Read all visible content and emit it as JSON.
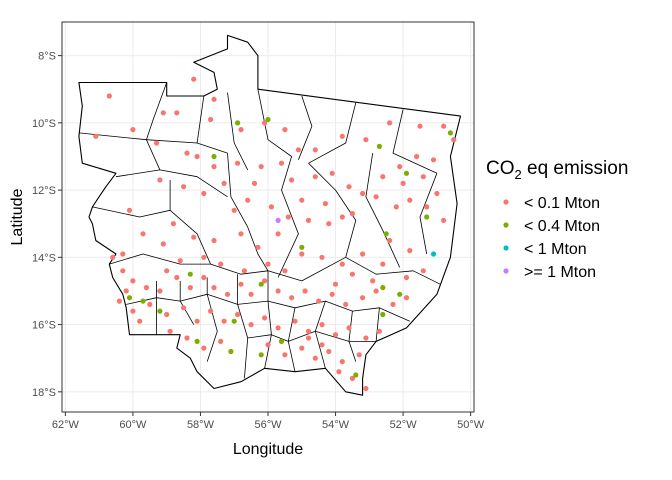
{
  "chart_data": {
    "type": "scatter",
    "xlabel": "Longitude",
    "ylabel": "Latitude",
    "xlim": [
      -62.1,
      -49.9
    ],
    "ylim": [
      -18.6,
      -7.0
    ],
    "x_ticks": [
      {
        "value": -62,
        "label": "62°W"
      },
      {
        "value": -60,
        "label": "60°W"
      },
      {
        "value": -58,
        "label": "58°W"
      },
      {
        "value": -56,
        "label": "56°W"
      },
      {
        "value": -54,
        "label": "54°W"
      },
      {
        "value": -52,
        "label": "52°W"
      },
      {
        "value": -50,
        "label": "50°W"
      }
    ],
    "y_ticks": [
      {
        "value": -8,
        "label": "8°S"
      },
      {
        "value": -10,
        "label": "10°S"
      },
      {
        "value": -12,
        "label": "12°S"
      },
      {
        "value": -14,
        "label": "14°S"
      },
      {
        "value": -16,
        "label": "16°S"
      },
      {
        "value": -18,
        "label": "18°S"
      }
    ],
    "grid": true,
    "legend": {
      "title_main": "CO",
      "title_sub": "2",
      "title_rest": " eq emission",
      "position": "right"
    },
    "series": [
      {
        "name": "< 0.1 Mton",
        "color": "#F8766D",
        "points": [
          [
            -60.7,
            -9.2
          ],
          [
            -61.1,
            -10.4
          ],
          [
            -60.0,
            -10.2
          ],
          [
            -59.1,
            -9.7
          ],
          [
            -58.2,
            -8.7
          ],
          [
            -57.6,
            -9.3
          ],
          [
            -57.7,
            -9.9
          ],
          [
            -58.7,
            -9.7
          ],
          [
            -59.3,
            -10.6
          ],
          [
            -58.4,
            -10.9
          ],
          [
            -58.1,
            -11.0
          ],
          [
            -57.6,
            -11.3
          ],
          [
            -56.8,
            -10.2
          ],
          [
            -56.1,
            -10.0
          ],
          [
            -55.5,
            -10.2
          ],
          [
            -55.1,
            -10.8
          ],
          [
            -54.6,
            -10.8
          ],
          [
            -53.8,
            -10.4
          ],
          [
            -53.1,
            -10.5
          ],
          [
            -52.4,
            -10.0
          ],
          [
            -51.5,
            -10.1
          ],
          [
            -50.8,
            -10.1
          ],
          [
            -50.5,
            -10.5
          ],
          [
            -52.1,
            -11.3
          ],
          [
            -51.6,
            -11.0
          ],
          [
            -51.1,
            -11.1
          ],
          [
            -56.9,
            -11.2
          ],
          [
            -56.2,
            -11.3
          ],
          [
            -55.6,
            -11.2
          ],
          [
            -55.3,
            -11.7
          ],
          [
            -54.6,
            -11.6
          ],
          [
            -54.1,
            -11.5
          ],
          [
            -53.6,
            -11.9
          ],
          [
            -53.2,
            -12.1
          ],
          [
            -52.8,
            -12.2
          ],
          [
            -52.2,
            -12.5
          ],
          [
            -51.8,
            -12.3
          ],
          [
            -51.3,
            -12.5
          ],
          [
            -51.0,
            -12.1
          ],
          [
            -50.8,
            -12.9
          ],
          [
            -59.2,
            -11.7
          ],
          [
            -58.5,
            -11.9
          ],
          [
            -57.9,
            -12.1
          ],
          [
            -57.3,
            -11.8
          ],
          [
            -56.6,
            -12.3
          ],
          [
            -55.9,
            -12.5
          ],
          [
            -55.4,
            -12.8
          ],
          [
            -54.8,
            -12.9
          ],
          [
            -54.2,
            -13.0
          ],
          [
            -53.5,
            -12.7
          ],
          [
            -60.1,
            -12.6
          ],
          [
            -59.7,
            -13.3
          ],
          [
            -59.1,
            -13.6
          ],
          [
            -58.8,
            -13.0
          ],
          [
            -58.2,
            -13.4
          ],
          [
            -57.6,
            -13.5
          ],
          [
            -56.8,
            -13.3
          ],
          [
            -56.3,
            -13.7
          ],
          [
            -55.7,
            -13.3
          ],
          [
            -55.0,
            -13.9
          ],
          [
            -54.4,
            -14.0
          ],
          [
            -53.8,
            -14.2
          ],
          [
            -53.2,
            -13.9
          ],
          [
            -52.4,
            -13.5
          ],
          [
            -51.8,
            -13.8
          ],
          [
            -51.4,
            -14.4
          ],
          [
            -60.6,
            -14.0
          ],
          [
            -60.3,
            -14.4
          ],
          [
            -60.0,
            -14.7
          ],
          [
            -59.6,
            -14.9
          ],
          [
            -59.2,
            -15.0
          ],
          [
            -58.7,
            -14.6
          ],
          [
            -58.3,
            -14.9
          ],
          [
            -57.9,
            -14.6
          ],
          [
            -57.6,
            -14.9
          ],
          [
            -57.2,
            -15.1
          ],
          [
            -56.8,
            -14.8
          ],
          [
            -56.5,
            -15.1
          ],
          [
            -56.1,
            -14.7
          ],
          [
            -55.7,
            -15.0
          ],
          [
            -55.3,
            -15.2
          ],
          [
            -54.9,
            -15.0
          ],
          [
            -54.5,
            -15.3
          ],
          [
            -54.1,
            -15.1
          ],
          [
            -53.7,
            -15.4
          ],
          [
            -53.2,
            -15.2
          ],
          [
            -52.8,
            -15.0
          ],
          [
            -52.3,
            -15.4
          ],
          [
            -51.9,
            -15.2
          ],
          [
            -60.4,
            -15.3
          ],
          [
            -60.0,
            -15.6
          ],
          [
            -59.5,
            -15.4
          ],
          [
            -59.0,
            -15.7
          ],
          [
            -58.5,
            -15.5
          ],
          [
            -58.1,
            -15.9
          ],
          [
            -57.7,
            -15.6
          ],
          [
            -57.3,
            -15.9
          ],
          [
            -56.9,
            -15.7
          ],
          [
            -56.5,
            -16.0
          ],
          [
            -56.1,
            -15.8
          ],
          [
            -55.7,
            -16.1
          ],
          [
            -55.2,
            -15.9
          ],
          [
            -54.8,
            -16.2
          ],
          [
            -54.4,
            -16.0
          ],
          [
            -54.0,
            -16.3
          ],
          [
            -53.6,
            -16.1
          ],
          [
            -53.1,
            -16.4
          ],
          [
            -52.7,
            -16.2
          ],
          [
            -58.9,
            -16.2
          ],
          [
            -58.4,
            -16.4
          ],
          [
            -57.9,
            -16.7
          ],
          [
            -57.4,
            -16.5
          ],
          [
            -56.0,
            -16.6
          ],
          [
            -55.5,
            -16.9
          ],
          [
            -55.0,
            -16.7
          ],
          [
            -54.6,
            -17.0
          ],
          [
            -54.2,
            -16.8
          ],
          [
            -53.8,
            -17.1
          ],
          [
            -53.3,
            -16.9
          ],
          [
            -54.8,
            -16.4
          ],
          [
            -54.4,
            -16.6
          ],
          [
            -53.9,
            -17.4
          ],
          [
            -53.5,
            -17.6
          ],
          [
            -53.1,
            -17.9
          ],
          [
            -54.0,
            -14.8
          ],
          [
            -53.5,
            -14.5
          ],
          [
            -52.9,
            -14.7
          ],
          [
            -52.6,
            -14.2
          ],
          [
            -51.9,
            -14.6
          ],
          [
            -55.5,
            -14.4
          ],
          [
            -56.0,
            -14.2
          ],
          [
            -56.7,
            -14.4
          ],
          [
            -57.4,
            -14.2
          ],
          [
            -57.9,
            -14.0
          ],
          [
            -58.6,
            -14.1
          ],
          [
            -59.0,
            -14.4
          ],
          [
            -60.2,
            -15.0
          ],
          [
            -59.8,
            -15.9
          ],
          [
            -60.3,
            -13.9
          ],
          [
            -57.0,
            -12.6
          ],
          [
            -56.4,
            -11.8
          ],
          [
            -55.0,
            -12.3
          ],
          [
            -54.3,
            -12.4
          ],
          [
            -53.8,
            -12.8
          ],
          [
            -52.6,
            -11.6
          ],
          [
            -52.0,
            -11.8
          ],
          [
            -51.4,
            -11.6
          ]
        ]
      },
      {
        "name": "< 0.4 Mton",
        "color": "#7CAE00",
        "points": [
          [
            -56.9,
            -10.0
          ],
          [
            -56.0,
            -9.9
          ],
          [
            -57.6,
            -11.0
          ],
          [
            -52.7,
            -10.7
          ],
          [
            -50.6,
            -10.3
          ],
          [
            -51.9,
            -11.5
          ],
          [
            -51.3,
            -12.8
          ],
          [
            -52.5,
            -13.3
          ],
          [
            -55.0,
            -13.7
          ],
          [
            -56.2,
            -14.8
          ],
          [
            -58.3,
            -14.5
          ],
          [
            -60.1,
            -15.2
          ],
          [
            -59.7,
            -15.3
          ],
          [
            -59.2,
            -15.6
          ],
          [
            -58.1,
            -16.5
          ],
          [
            -57.0,
            -15.9
          ],
          [
            -57.1,
            -16.8
          ],
          [
            -56.2,
            -16.9
          ],
          [
            -55.6,
            -16.5
          ],
          [
            -53.4,
            -17.5
          ],
          [
            -52.6,
            -15.7
          ],
          [
            -52.1,
            -15.1
          ],
          [
            -52.6,
            -14.9
          ]
        ]
      },
      {
        "name": "< 1 Mton",
        "color": "#00BFC4",
        "points": [
          [
            -51.1,
            -13.9
          ]
        ]
      },
      {
        "name": ">= 1 Mton",
        "color": "#C77CFF",
        "points": [
          [
            -55.7,
            -12.9
          ]
        ]
      }
    ],
    "regions": [
      "M-61.6,-8.8 L-59.0,-8.8 L-59.0,-9.2 L-57.9,-9.2 L-57.5,-9.0 L-57.6,-8.5 L-58.2,-8.2 L-57.2,-7.8 L-57.2,-7.4 L-56.6,-7.6 L-56.3,-8.0 L-56.3,-9.0 L-50.3,-9.8 L-50.6,-11.0 L-50.4,-12.4 L-50.6,-14.0 L-51.0,-15.1 L-51.9,-16.1 L-52.8,-16.5 L-53.1,-16.9 L-53.2,-17.6 L-53.2,-18.1 L-53.7,-18.0 L-54.3,-17.3 L-55.2,-17.4 L-56.1,-17.3 L-56.8,-17.7 L-57.6,-17.9 L-58.1,-17.4 L-58.3,-17.0 L-58.7,-16.7 L-58.6,-16.3 L-60.1,-16.3 L-60.2,-15.5 L-60.3,-15.1 L-60.6,-14.6 L-60.7,-14.2 L-60.5,-13.9 L-61.1,-13.5 L-61.2,-13.0 L-61.3,-12.8 L-61.2,-12.5 L-61.0,-12.2 L-60.8,-11.9 L-60.5,-11.5 L-61.5,-11.2 L-61.6,-10.4 L-61.5,-9.5 Z",
      "M-61.6,-10.3 L-59.6,-10.5 L-59.2,-11.4 L-60.5,-11.6",
      "M-59.0,-8.8 L-59.4,-9.9 L-59.6,-10.5",
      "M-59.6,-10.5 L-58.1,-10.6 L-57.2,-10.9",
      "M-57.9,-9.2 L-58.1,-10.6",
      "M-57.2,-9.1 L-57.0,-10.6 L-56.6,-11.4",
      "M-56.3,-9.0 L-56.0,-10.5 L-55.3,-11.0",
      "M-55.0,-9.2 L-54.7,-10.1 L-55.1,-11.1",
      "M-53.4,-9.4 L-53.7,-10.6 L-54.8,-11.2",
      "M-52.0,-9.6 L-52.3,-10.9 L-51.0,-11.5",
      "M-59.2,-11.4 L-58.1,-11.6 L-57.2,-12.2",
      "M-57.2,-10.9 L-57.1,-12.2",
      "M-61.2,-12.5 L-59.8,-12.8 L-58.9,-12.6",
      "M-58.9,-11.7 L-58.9,-12.6 L-58.1,-13.3 L-57.7,-14.2",
      "M-57.1,-12.2 L-56.6,-13.1 L-56.3,-13.9 L-56.0,-14.4",
      "M-55.3,-11.0 L-55.6,-12.0 L-55.1,-13.3 L-55.7,-14.6",
      "M-54.8,-11.2 L-54.0,-12.0 L-53.4,-12.9 L-53.7,-14.0",
      "M-52.9,-10.9 L-53.1,-12.2 L-52.6,-13.2 L-52.1,-14.3",
      "M-51.0,-11.5 L-51.5,-12.8 L-51.3,-13.9",
      "M-60.7,-14.2 L-59.7,-13.9 L-58.6,-14.2 L-57.7,-14.2 L-56.8,-14.5 L-56.0,-14.4 L-55.0,-14.7 L-53.7,-14.0 L-52.8,-14.5 L-51.7,-14.4 L-50.9,-14.8",
      "M-60.2,-15.4 L-59.3,-15.2 L-58.6,-15.3 L-57.8,-15.1 L-56.9,-15.4 L-56.0,-15.3 L-55.2,-15.5 L-54.3,-15.3 L-53.5,-15.6 L-52.7,-15.5 L-51.8,-15.9",
      "M-59.3,-14.7 L-59.3,-15.2 L-59.3,-16.3",
      "M-58.6,-14.7 L-58.6,-15.3 L-58.2,-16.0",
      "M-57.8,-14.6 L-57.8,-15.1 L-57.5,-16.2 L-57.8,-17.1",
      "M-56.9,-14.5 L-56.9,-15.4 L-56.6,-16.4 L-56.7,-17.6",
      "M-56.0,-14.4 L-56.0,-15.3 L-55.9,-16.3 L-56.1,-17.3",
      "M-55.2,-15.5 L-55.4,-16.5 L-55.2,-17.4",
      "M-54.3,-15.3 L-54.6,-16.2 L-54.3,-17.3",
      "M-53.5,-15.6 L-53.6,-16.5 L-53.4,-17.1",
      "M-52.7,-15.5 L-52.8,-16.5",
      "M-56.6,-16.4 L-55.9,-16.3 L-55.4,-16.5 L-54.6,-16.2 L-53.6,-16.5 L-52.8,-16.5"
    ]
  }
}
